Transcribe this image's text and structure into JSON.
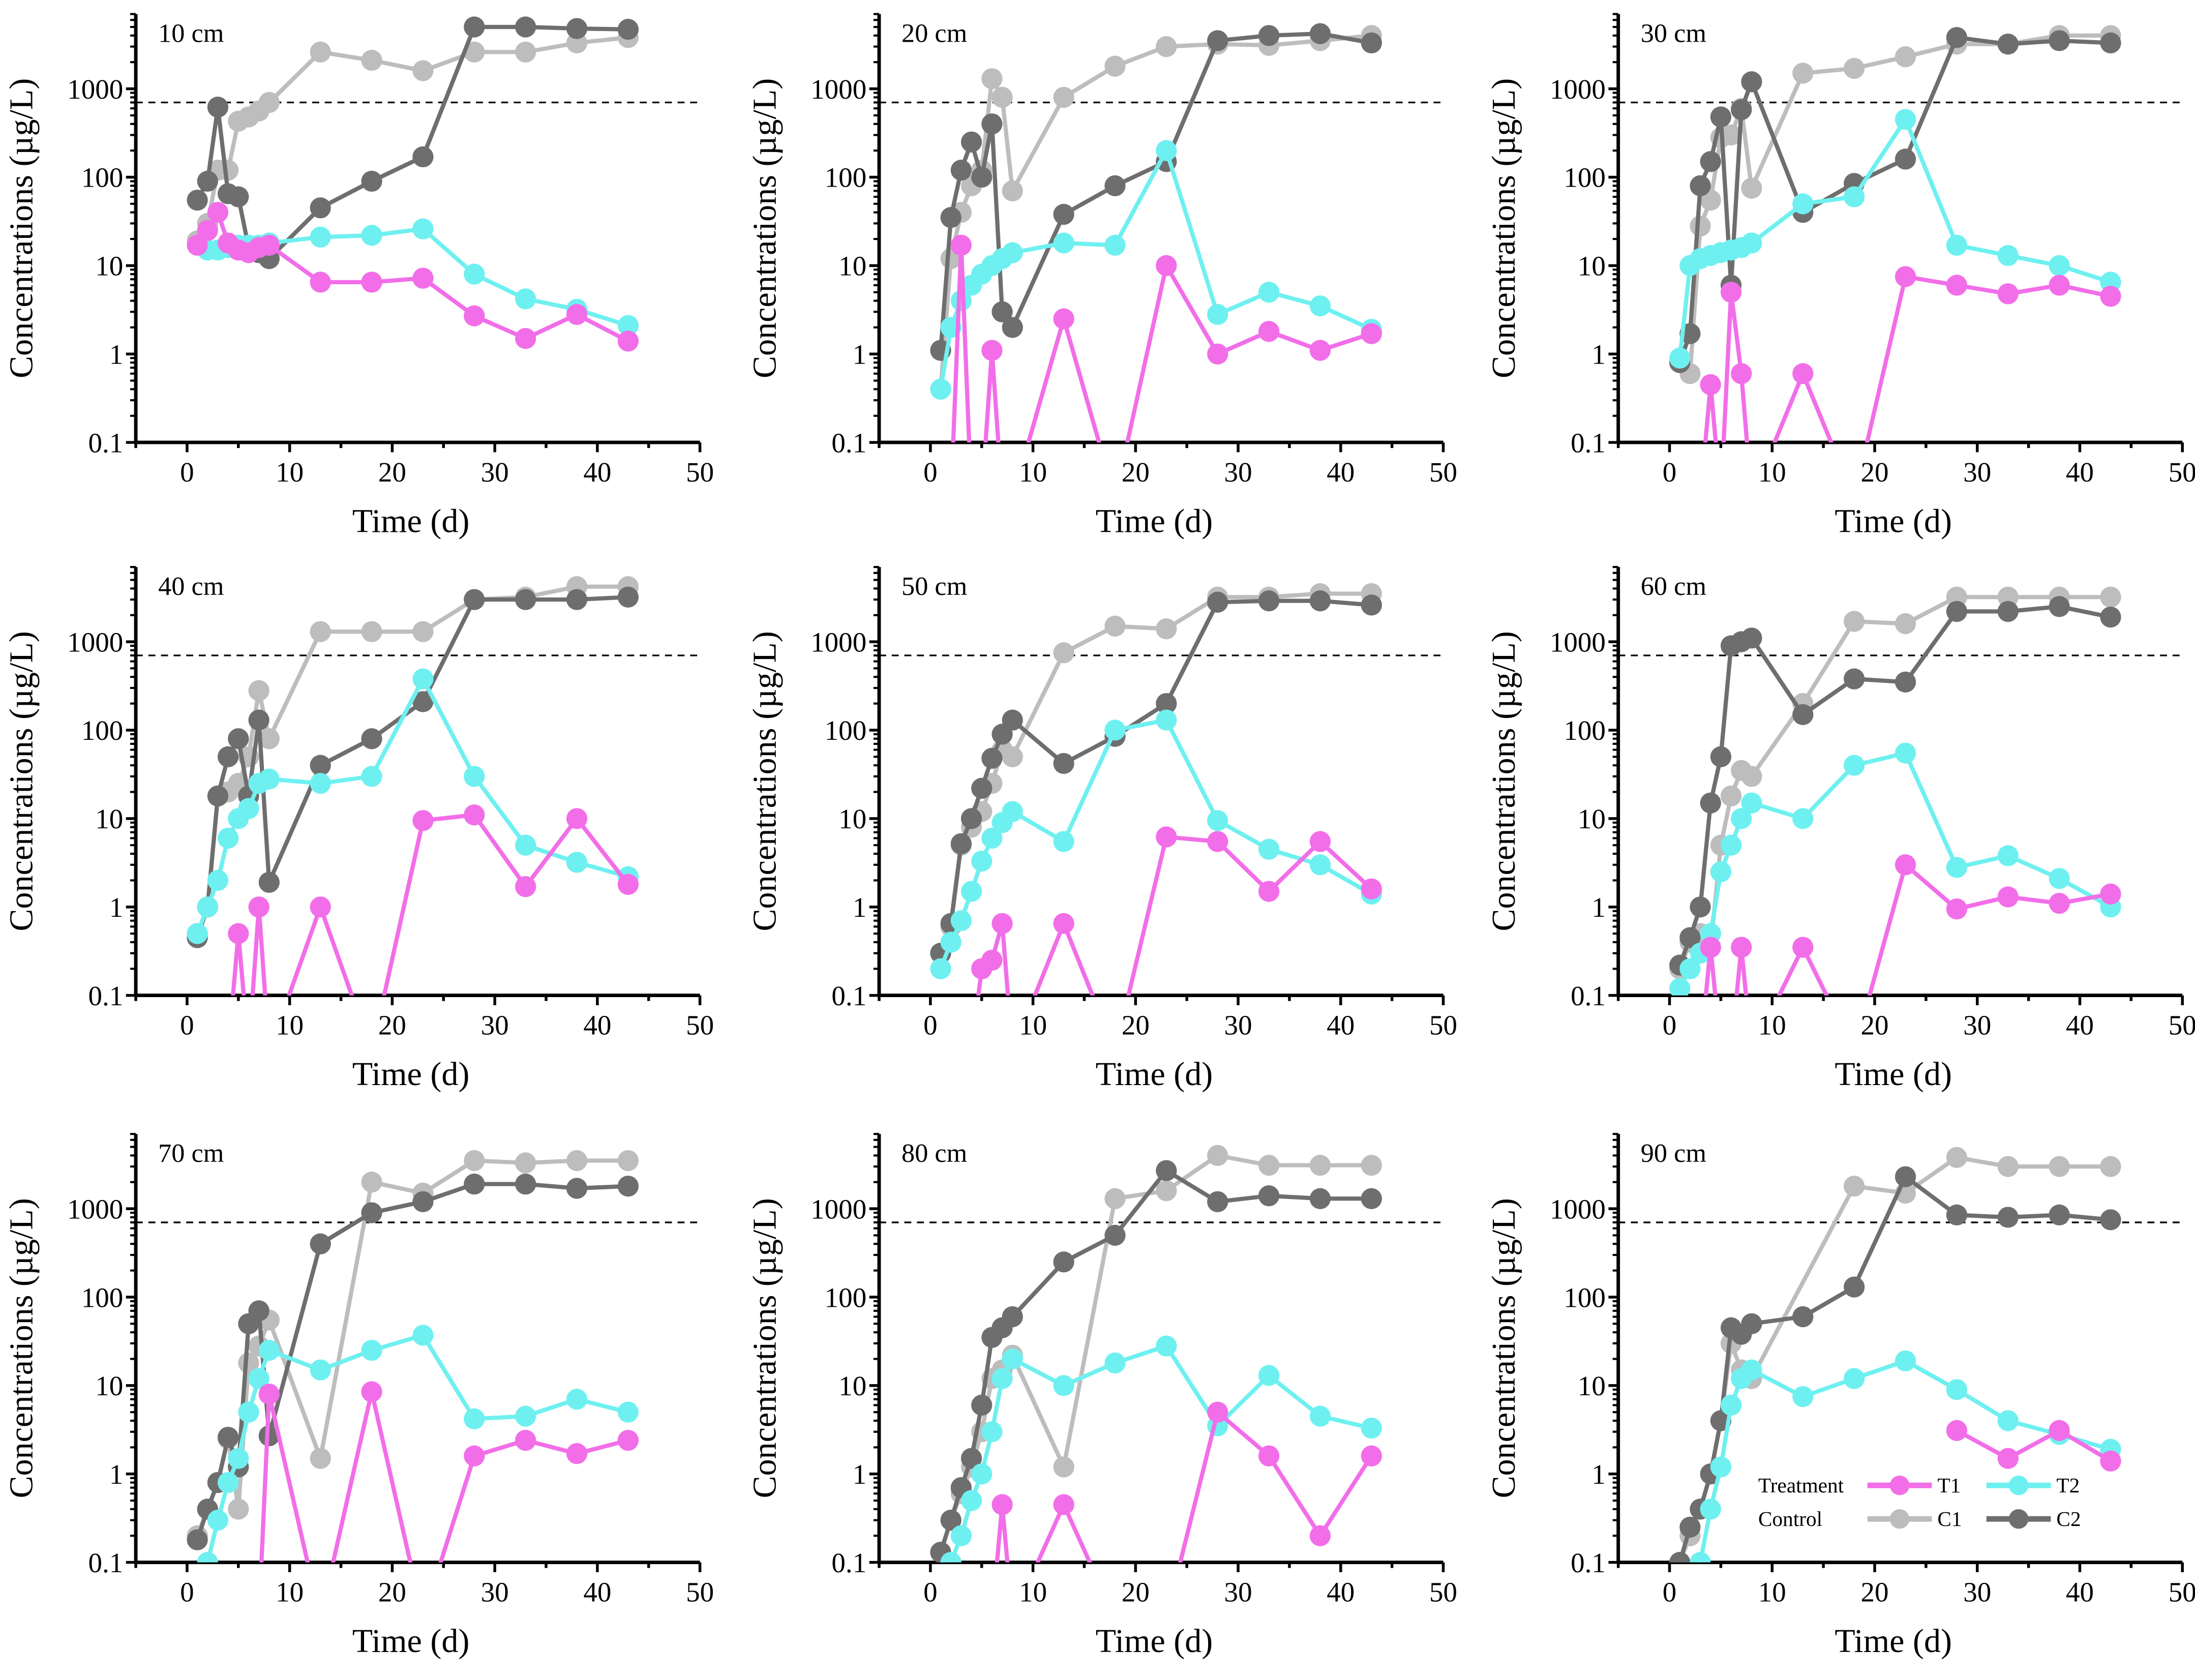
{
  "chart_data": {
    "type": "line",
    "layout": "3x3 grid of panels",
    "xlabel": "Time (d)",
    "ylabel": "Concentrations (µg/L)",
    "xlim": [
      -5,
      50
    ],
    "xticks": [
      "0",
      "10",
      "20",
      "30",
      "40",
      "50"
    ],
    "yscale": "log",
    "ylim": [
      0.1,
      7000
    ],
    "yticks": [
      "0.1",
      "1",
      "10",
      "100",
      "1000"
    ],
    "threshold": 700,
    "x": [
      1,
      2,
      3,
      4,
      5,
      6,
      7,
      8,
      13,
      18,
      23,
      28,
      33,
      38,
      43
    ],
    "legend": {
      "rows": [
        {
          "group": "Treatment",
          "items": [
            "T1",
            "T2"
          ]
        },
        {
          "group": "Control",
          "items": [
            "C1",
            "C2"
          ]
        }
      ],
      "placement": "bottom-right of 90 cm panel"
    },
    "colors": {
      "T1": "#f26ee8",
      "T2": "#6ff0f0",
      "C1": "#bdbdbd",
      "C2": "#6e6e6e"
    },
    "note": "0 = below detection (line drops below axis)",
    "panels": [
      {
        "label": "10 cm",
        "series": {
          "T1": [
            17,
            25,
            40,
            18,
            15,
            14,
            16,
            17,
            6.5,
            6.5,
            7.2,
            2.7,
            1.5,
            2.8,
            1.4
          ],
          "T2": [
            17,
            15,
            15,
            16,
            17,
            17,
            17,
            18,
            21,
            22,
            26,
            8,
            4.2,
            3.2,
            2.1
          ],
          "C1": [
            19,
            30,
            120,
            120,
            430,
            480,
            560,
            700,
            2600,
            2100,
            1600,
            2600,
            2600,
            3300,
            3800
          ],
          "C2": [
            55,
            90,
            620,
            65,
            60,
            16,
            14,
            12,
            45,
            90,
            170,
            5000,
            5000,
            4800,
            4700
          ]
        }
      },
      {
        "label": "20 cm",
        "series": {
          "T1": [
            0,
            0,
            17,
            0,
            0,
            1.1,
            0,
            0,
            2.5,
            0,
            10,
            1.0,
            1.8,
            1.1,
            1.7
          ],
          "T2": [
            0.4,
            2,
            4,
            6,
            8,
            10,
            12,
            14,
            18,
            17,
            200,
            2.8,
            5,
            3.5,
            1.9
          ],
          "C1": [
            0.4,
            12,
            40,
            80,
            120,
            1300,
            800,
            70,
            800,
            1800,
            3000,
            3200,
            3100,
            3500,
            4000
          ],
          "C2": [
            1.1,
            35,
            120,
            250,
            100,
            400,
            3,
            2,
            38,
            80,
            150,
            3500,
            4000,
            4200,
            3300
          ]
        }
      },
      {
        "label": "30 cm",
        "series": {
          "T1": [
            0,
            0,
            0,
            0.45,
            0,
            5,
            0.6,
            0,
            0.6,
            0,
            7.5,
            6,
            4.8,
            6,
            4.5
          ],
          "T2": [
            0.9,
            10,
            12,
            13,
            14,
            15,
            16,
            18,
            50,
            60,
            450,
            17,
            13,
            10,
            6.5
          ],
          "C1": [
            0.8,
            0.6,
            28,
            55,
            280,
            300,
            600,
            75,
            1500,
            1700,
            2300,
            3200,
            3200,
            4000,
            4000
          ],
          "C2": [
            0.8,
            1.7,
            80,
            150,
            480,
            6,
            580,
            1200,
            40,
            85,
            160,
            3800,
            3200,
            3500,
            3300
          ]
        }
      },
      {
        "label": "40 cm",
        "series": {
          "T1": [
            0,
            0,
            0,
            0,
            0.5,
            0,
            1,
            0,
            1,
            0,
            9.5,
            11,
            1.7,
            10,
            1.8
          ],
          "T2": [
            0.5,
            1,
            2,
            6,
            10,
            13,
            25,
            28,
            25,
            30,
            380,
            30,
            5,
            3.2,
            2.2
          ],
          "C1": [
            0.5,
            1,
            18,
            20,
            25,
            50,
            280,
            80,
            1300,
            1300,
            1300,
            3000,
            3200,
            4200,
            4200
          ],
          "C2": [
            0.45,
            1,
            18,
            50,
            80,
            18,
            130,
            1.9,
            40,
            80,
            210,
            3000,
            3000,
            3000,
            3200
          ]
        }
      },
      {
        "label": "50 cm",
        "series": {
          "T1": [
            0,
            0,
            0,
            0,
            0.2,
            0.25,
            0.65,
            0,
            0.65,
            0,
            6.2,
            5.5,
            1.5,
            5.5,
            1.6
          ],
          "T2": [
            0.2,
            0.4,
            0.7,
            1.5,
            3.3,
            6,
            9,
            12,
            5.5,
            100,
            130,
            9.5,
            4.5,
            3,
            1.4
          ],
          "C1": [
            0.3,
            0.6,
            5,
            8,
            12,
            25,
            60,
            50,
            750,
            1500,
            1400,
            3200,
            3200,
            3500,
            3500
          ],
          "C2": [
            0.3,
            0.65,
            5.2,
            10,
            22,
            48,
            90,
            130,
            42,
            85,
            200,
            2800,
            2900,
            2900,
            2600
          ]
        }
      },
      {
        "label": "60 cm",
        "series": {
          "T1": [
            0,
            0,
            0,
            0.35,
            0,
            0,
            0.35,
            0,
            0.35,
            0,
            3,
            0.95,
            1.3,
            1.1,
            1.4
          ],
          "T2": [
            0.12,
            0.2,
            0.3,
            0.5,
            2.5,
            5,
            10,
            15,
            10,
            40,
            55,
            2.8,
            3.8,
            2.1,
            1
          ],
          "C1": [
            0.2,
            0.4,
            0.5,
            0.35,
            5,
            18,
            35,
            30,
            200,
            1700,
            1600,
            3200,
            3200,
            3200,
            3200
          ],
          "C2": [
            0.22,
            0.45,
            1,
            15,
            50,
            900,
            1000,
            1100,
            150,
            380,
            350,
            2200,
            2200,
            2500,
            1900
          ]
        }
      },
      {
        "label": "70 cm",
        "series": {
          "T1": [
            0,
            0,
            0,
            0,
            0,
            0,
            0,
            8,
            0,
            8.5,
            0,
            1.6,
            2.4,
            1.7,
            2.4
          ],
          "T2": [
            0.05,
            0.1,
            0.3,
            0.8,
            1.5,
            5,
            12,
            25,
            15,
            25,
            37,
            4.2,
            4.5,
            7,
            5
          ],
          "C1": [
            0.2,
            0.4,
            0.8,
            2.5,
            0.4,
            18,
            28,
            55,
            1.5,
            2000,
            1500,
            3500,
            3300,
            3500,
            3500
          ],
          "C2": [
            0.18,
            0.4,
            0.8,
            2.6,
            1.2,
            50,
            70,
            2.7,
            400,
            900,
            1200,
            1900,
            1900,
            1700,
            1800
          ]
        }
      },
      {
        "label": "80 cm",
        "series": {
          "T1": [
            0,
            0,
            0,
            0,
            0,
            0,
            0.45,
            0,
            0.45,
            0,
            0,
            5,
            1.6,
            0.2,
            1.6
          ],
          "T2": [
            0.05,
            0.1,
            0.2,
            0.5,
            1,
            3,
            12,
            20,
            10,
            18,
            28,
            3.5,
            13,
            4.5,
            3.3
          ],
          "C1": [
            0.13,
            0.3,
            0.6,
            1.2,
            3,
            12,
            15,
            22,
            1.2,
            1300,
            1600,
            4000,
            3100,
            3100,
            3100
          ],
          "C2": [
            0.13,
            0.3,
            0.7,
            1.5,
            6,
            35,
            45,
            60,
            250,
            500,
            2700,
            1200,
            1400,
            1300,
            1300
          ]
        }
      },
      {
        "label": "90 cm",
        "series": {
          "T1": [
            null,
            null,
            null,
            null,
            null,
            null,
            null,
            null,
            null,
            null,
            null,
            3.1,
            1.5,
            3.1,
            1.4
          ],
          "T2": [
            0.05,
            0.05,
            0.1,
            0.4,
            1.2,
            6,
            12,
            15,
            7.5,
            12,
            19,
            9,
            4,
            2.8,
            1.9
          ],
          "C1": [
            0.1,
            0.2,
            0.4,
            1,
            4,
            30,
            15,
            12,
            null,
            1800,
            1500,
            3800,
            3000,
            3000,
            3000
          ],
          "C2": [
            0.1,
            0.25,
            0.4,
            1,
            4,
            45,
            38,
            50,
            60,
            130,
            2300,
            850,
            800,
            850,
            750
          ]
        }
      }
    ]
  }
}
